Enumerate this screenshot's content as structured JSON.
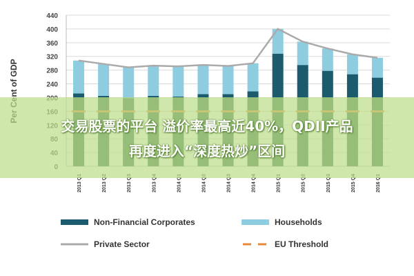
{
  "chart_data": {
    "type": "bar",
    "stacked_with_line": true,
    "ylabel": "Per Cent of GDP",
    "ylim": [
      0,
      440
    ],
    "yticks": [
      0,
      40,
      80,
      120,
      160,
      200,
      240,
      280,
      320,
      360,
      400,
      440
    ],
    "grid": true,
    "legend_position": "bottom",
    "categories": [
      "2013 Q1",
      "2013 Q2",
      "2013 Q3",
      "2013 Q4",
      "2014 Q1",
      "2014 Q2",
      "2014 Q3",
      "2014 Q4",
      "2015 Q1",
      "2015 Q2",
      "2015 Q3",
      "2015 Q4",
      "2016 Q1"
    ],
    "series": [
      {
        "name": "Non-Financial Corporates",
        "kind": "bar",
        "color": "#1c5a6e",
        "values": [
          212,
          205,
          198,
          205,
          203,
          210,
          210,
          218,
          328,
          295,
          278,
          268,
          258
        ]
      },
      {
        "name": "Households",
        "kind": "bar",
        "color": "#8ecde0",
        "values": [
          96,
          93,
          90,
          88,
          88,
          85,
          82,
          82,
          72,
          68,
          65,
          58,
          58
        ]
      },
      {
        "name": "Private Sector",
        "kind": "line",
        "color": "#aaaaaa",
        "values": [
          308,
          298,
          288,
          293,
          291,
          295,
          292,
          300,
          400,
          363,
          343,
          326,
          316
        ]
      },
      {
        "name": "EU Threshold",
        "kind": "dashed-line",
        "color": "#e58a3c",
        "values": [
          160,
          160,
          160,
          160,
          160,
          160,
          160,
          160,
          160,
          160,
          160,
          160,
          160
        ]
      }
    ]
  },
  "banner": {
    "line1": "交易股票的平台 溢价率最高近40%，QDII产品",
    "line2": "再度进入“深度热炒”区间"
  }
}
